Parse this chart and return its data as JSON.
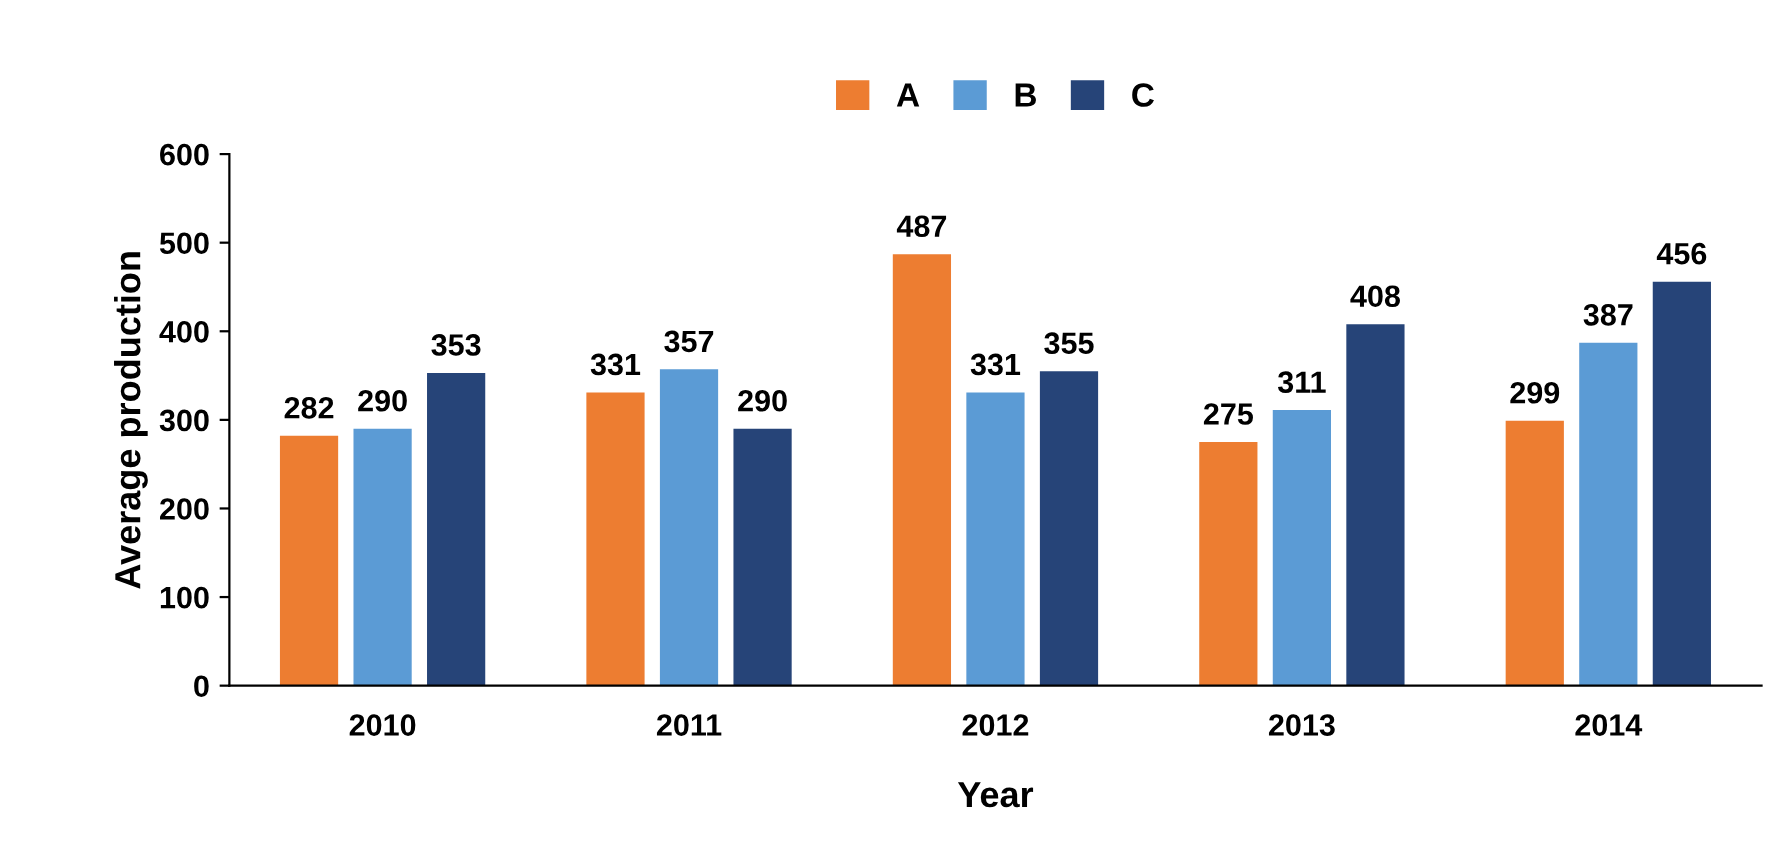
{
  "chart_data": {
    "type": "bar",
    "xlabel": "Year",
    "ylabel": "Average production",
    "categories": [
      "2010",
      "2011",
      "2012",
      "2013",
      "2014"
    ],
    "series": [
      {
        "name": "A",
        "color": "#ed7d31",
        "values": [
          282,
          331,
          487,
          275,
          299
        ]
      },
      {
        "name": "B",
        "color": "#5b9bd5",
        "values": [
          290,
          357,
          331,
          311,
          387
        ]
      },
      {
        "name": "C",
        "color": "#264478",
        "values": [
          353,
          290,
          355,
          408,
          456
        ]
      }
    ],
    "ylim": [
      0,
      600
    ],
    "yticks": [
      0,
      100,
      200,
      300,
      400,
      500,
      600
    ],
    "grid": false,
    "legend": "top",
    "data_labels": true
  }
}
